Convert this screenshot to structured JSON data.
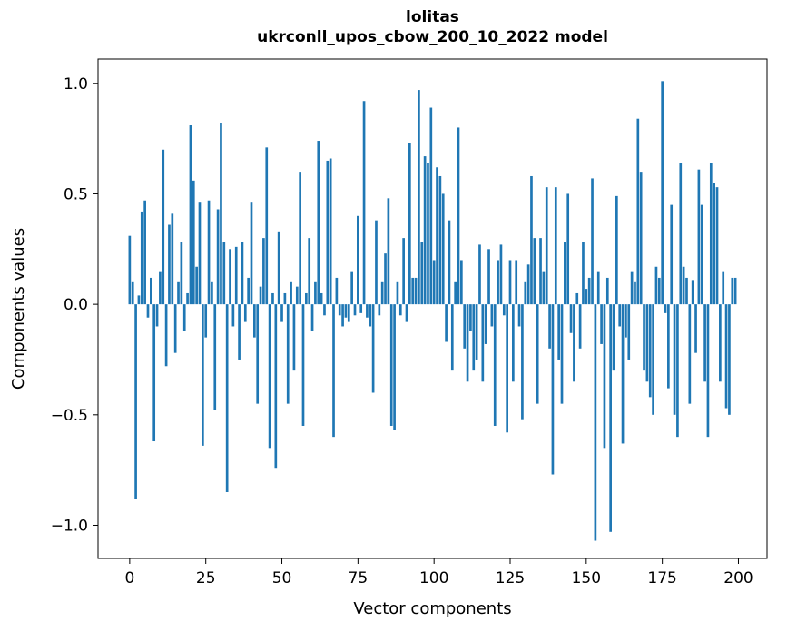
{
  "chart_data": {
    "type": "bar",
    "title_line1": "lolitas",
    "title_line2": "ukrconll_upos_cbow_200_10_2022 model",
    "xlabel": "Vector components",
    "ylabel": "Components values",
    "bar_color": "#1f77b4",
    "grid": false,
    "legend": "none",
    "xlim": [
      -10.4,
      209.4
    ],
    "ylim": [
      -1.15,
      1.11
    ],
    "xticks": [
      0,
      25,
      50,
      75,
      100,
      125,
      150,
      175,
      200
    ],
    "yticks": [
      -1.0,
      -0.5,
      0.0,
      0.5,
      1.0
    ],
    "ytick_labels": [
      "−1.0",
      "−0.5",
      "0.0",
      "0.5",
      "1.0"
    ],
    "values": [
      0.31,
      0.1,
      -0.88,
      0.04,
      0.42,
      0.47,
      -0.06,
      0.12,
      -0.62,
      -0.1,
      0.15,
      0.7,
      -0.28,
      0.36,
      0.41,
      -0.22,
      0.1,
      0.28,
      -0.12,
      0.05,
      0.81,
      0.56,
      0.17,
      0.46,
      -0.64,
      -0.15,
      0.47,
      0.1,
      -0.48,
      0.43,
      0.82,
      0.28,
      -0.85,
      0.25,
      -0.1,
      0.26,
      -0.25,
      0.28,
      -0.08,
      0.12,
      0.46,
      -0.15,
      -0.45,
      0.08,
      0.3,
      0.71,
      -0.65,
      0.05,
      -0.74,
      0.33,
      -0.08,
      0.05,
      -0.45,
      0.1,
      -0.3,
      0.08,
      0.6,
      -0.55,
      0.05,
      0.3,
      -0.12,
      0.1,
      0.74,
      0.05,
      -0.05,
      0.65,
      0.66,
      -0.6,
      0.12,
      -0.05,
      -0.1,
      -0.06,
      -0.08,
      0.15,
      -0.05,
      0.4,
      -0.04,
      0.92,
      -0.06,
      -0.1,
      -0.4,
      0.38,
      -0.05,
      0.1,
      0.23,
      0.48,
      -0.55,
      -0.57,
      0.1,
      -0.05,
      0.3,
      -0.08,
      0.73,
      0.12,
      0.12,
      0.97,
      0.28,
      0.67,
      0.64,
      0.89,
      0.2,
      0.62,
      0.58,
      0.5,
      -0.17,
      0.38,
      -0.3,
      0.1,
      0.8,
      0.2,
      -0.2,
      -0.35,
      -0.12,
      -0.3,
      -0.25,
      0.27,
      -0.35,
      -0.18,
      0.25,
      -0.1,
      -0.55,
      0.2,
      0.27,
      -0.05,
      -0.58,
      0.2,
      -0.35,
      0.2,
      -0.1,
      -0.52,
      0.1,
      0.18,
      0.58,
      0.3,
      -0.45,
      0.3,
      0.15,
      0.53,
      -0.2,
      -0.77,
      0.53,
      -0.25,
      -0.45,
      0.28,
      0.5,
      -0.13,
      -0.35,
      0.05,
      -0.2,
      0.28,
      0.07,
      0.12,
      0.57,
      -1.07,
      0.15,
      -0.18,
      -0.65,
      0.12,
      -1.03,
      -0.3,
      0.49,
      -0.1,
      -0.63,
      -0.15,
      -0.25,
      0.15,
      0.1,
      0.84,
      0.6,
      -0.3,
      -0.35,
      -0.42,
      -0.5,
      0.17,
      0.12,
      1.01,
      -0.04,
      -0.38,
      0.45,
      -0.5,
      -0.6,
      0.64,
      0.17,
      0.12,
      -0.45,
      0.11,
      -0.22,
      0.61,
      0.45,
      -0.35,
      -0.6,
      0.64,
      0.55,
      0.53,
      -0.35,
      0.15,
      -0.47,
      -0.5,
      0.12,
      0.12
    ]
  }
}
